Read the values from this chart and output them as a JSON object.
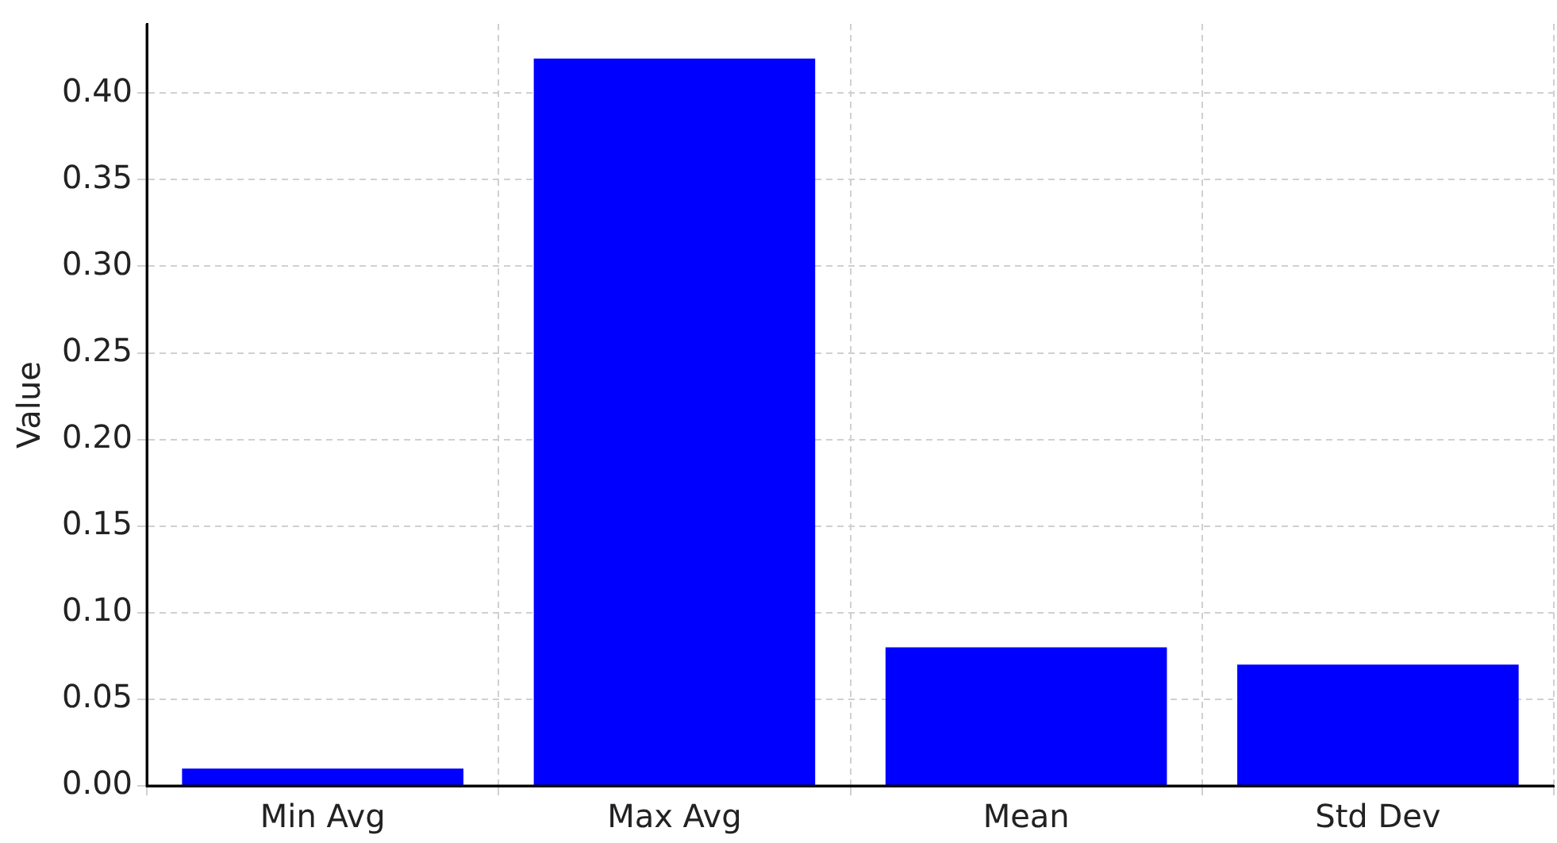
{
  "chart_data": {
    "type": "bar",
    "ylabel": "Value",
    "categories": [
      "Min Avg",
      "Max Avg",
      "Mean",
      "Std Dev"
    ],
    "values": [
      0.01,
      0.42,
      0.08,
      0.07
    ],
    "color": "#0000ff",
    "ylim": [
      0,
      0.44
    ],
    "yticks": [
      {
        "value": 0,
        "label": "0.00"
      },
      {
        "value": 0.05,
        "label": "0.05"
      },
      {
        "value": 0.1,
        "label": "0.10"
      },
      {
        "value": 0.15,
        "label": "0.15"
      },
      {
        "value": 0.2,
        "label": "0.20"
      },
      {
        "value": 0.25,
        "label": "0.25"
      },
      {
        "value": 0.3,
        "label": "0.30"
      },
      {
        "value": 0.35,
        "label": "0.35"
      },
      {
        "value": 0.4,
        "label": "0.40"
      }
    ],
    "grid": true
  }
}
